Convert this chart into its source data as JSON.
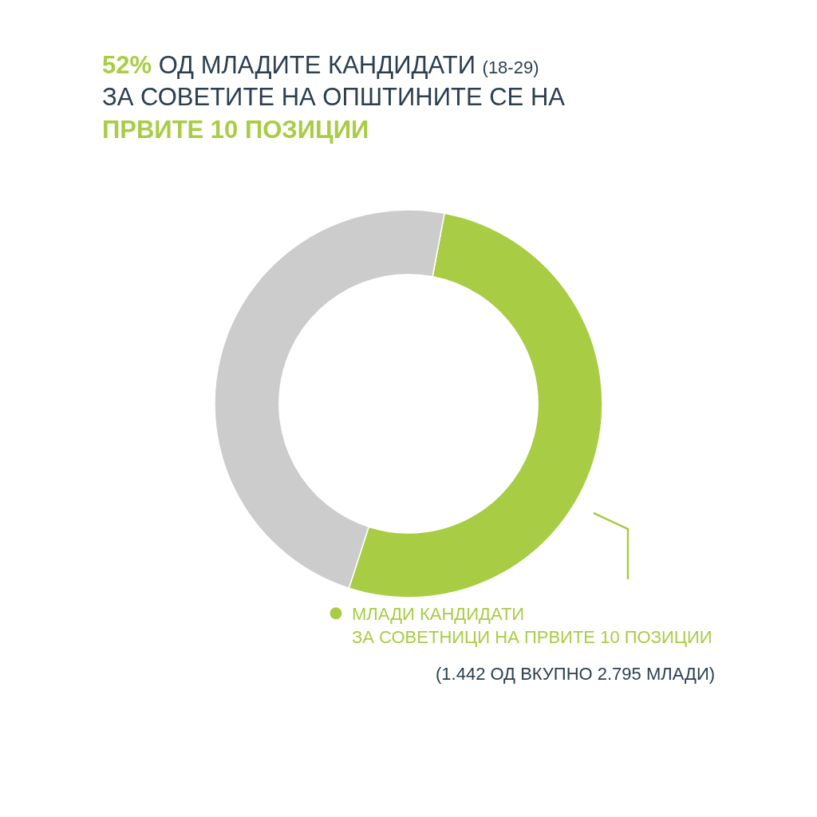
{
  "chart_data": {
    "type": "donut",
    "title": "52% ОД МЛАДИТЕ КАНДИДАТИ (18-29)\nЗА СОВЕТИТЕ НА ОПШТИНИТЕ СЕ НА\nПРВИТЕ 10 ПОЗИЦИИ",
    "categories": [
      "МЛАДИ КАНДИДАТИ\nЗА СОВЕТНИЦИ НА ПРВИТЕ 10 ПОЗИЦИИ",
      null
    ],
    "values": [
      52,
      48
    ],
    "colors": [
      "#a8cd45",
      "#cccccc"
    ],
    "legend": "bottom right",
    "annotations": [
      "(1.442 ОД ВКУПНО 2.795 МЛАДИ)"
    ]
  }
}
